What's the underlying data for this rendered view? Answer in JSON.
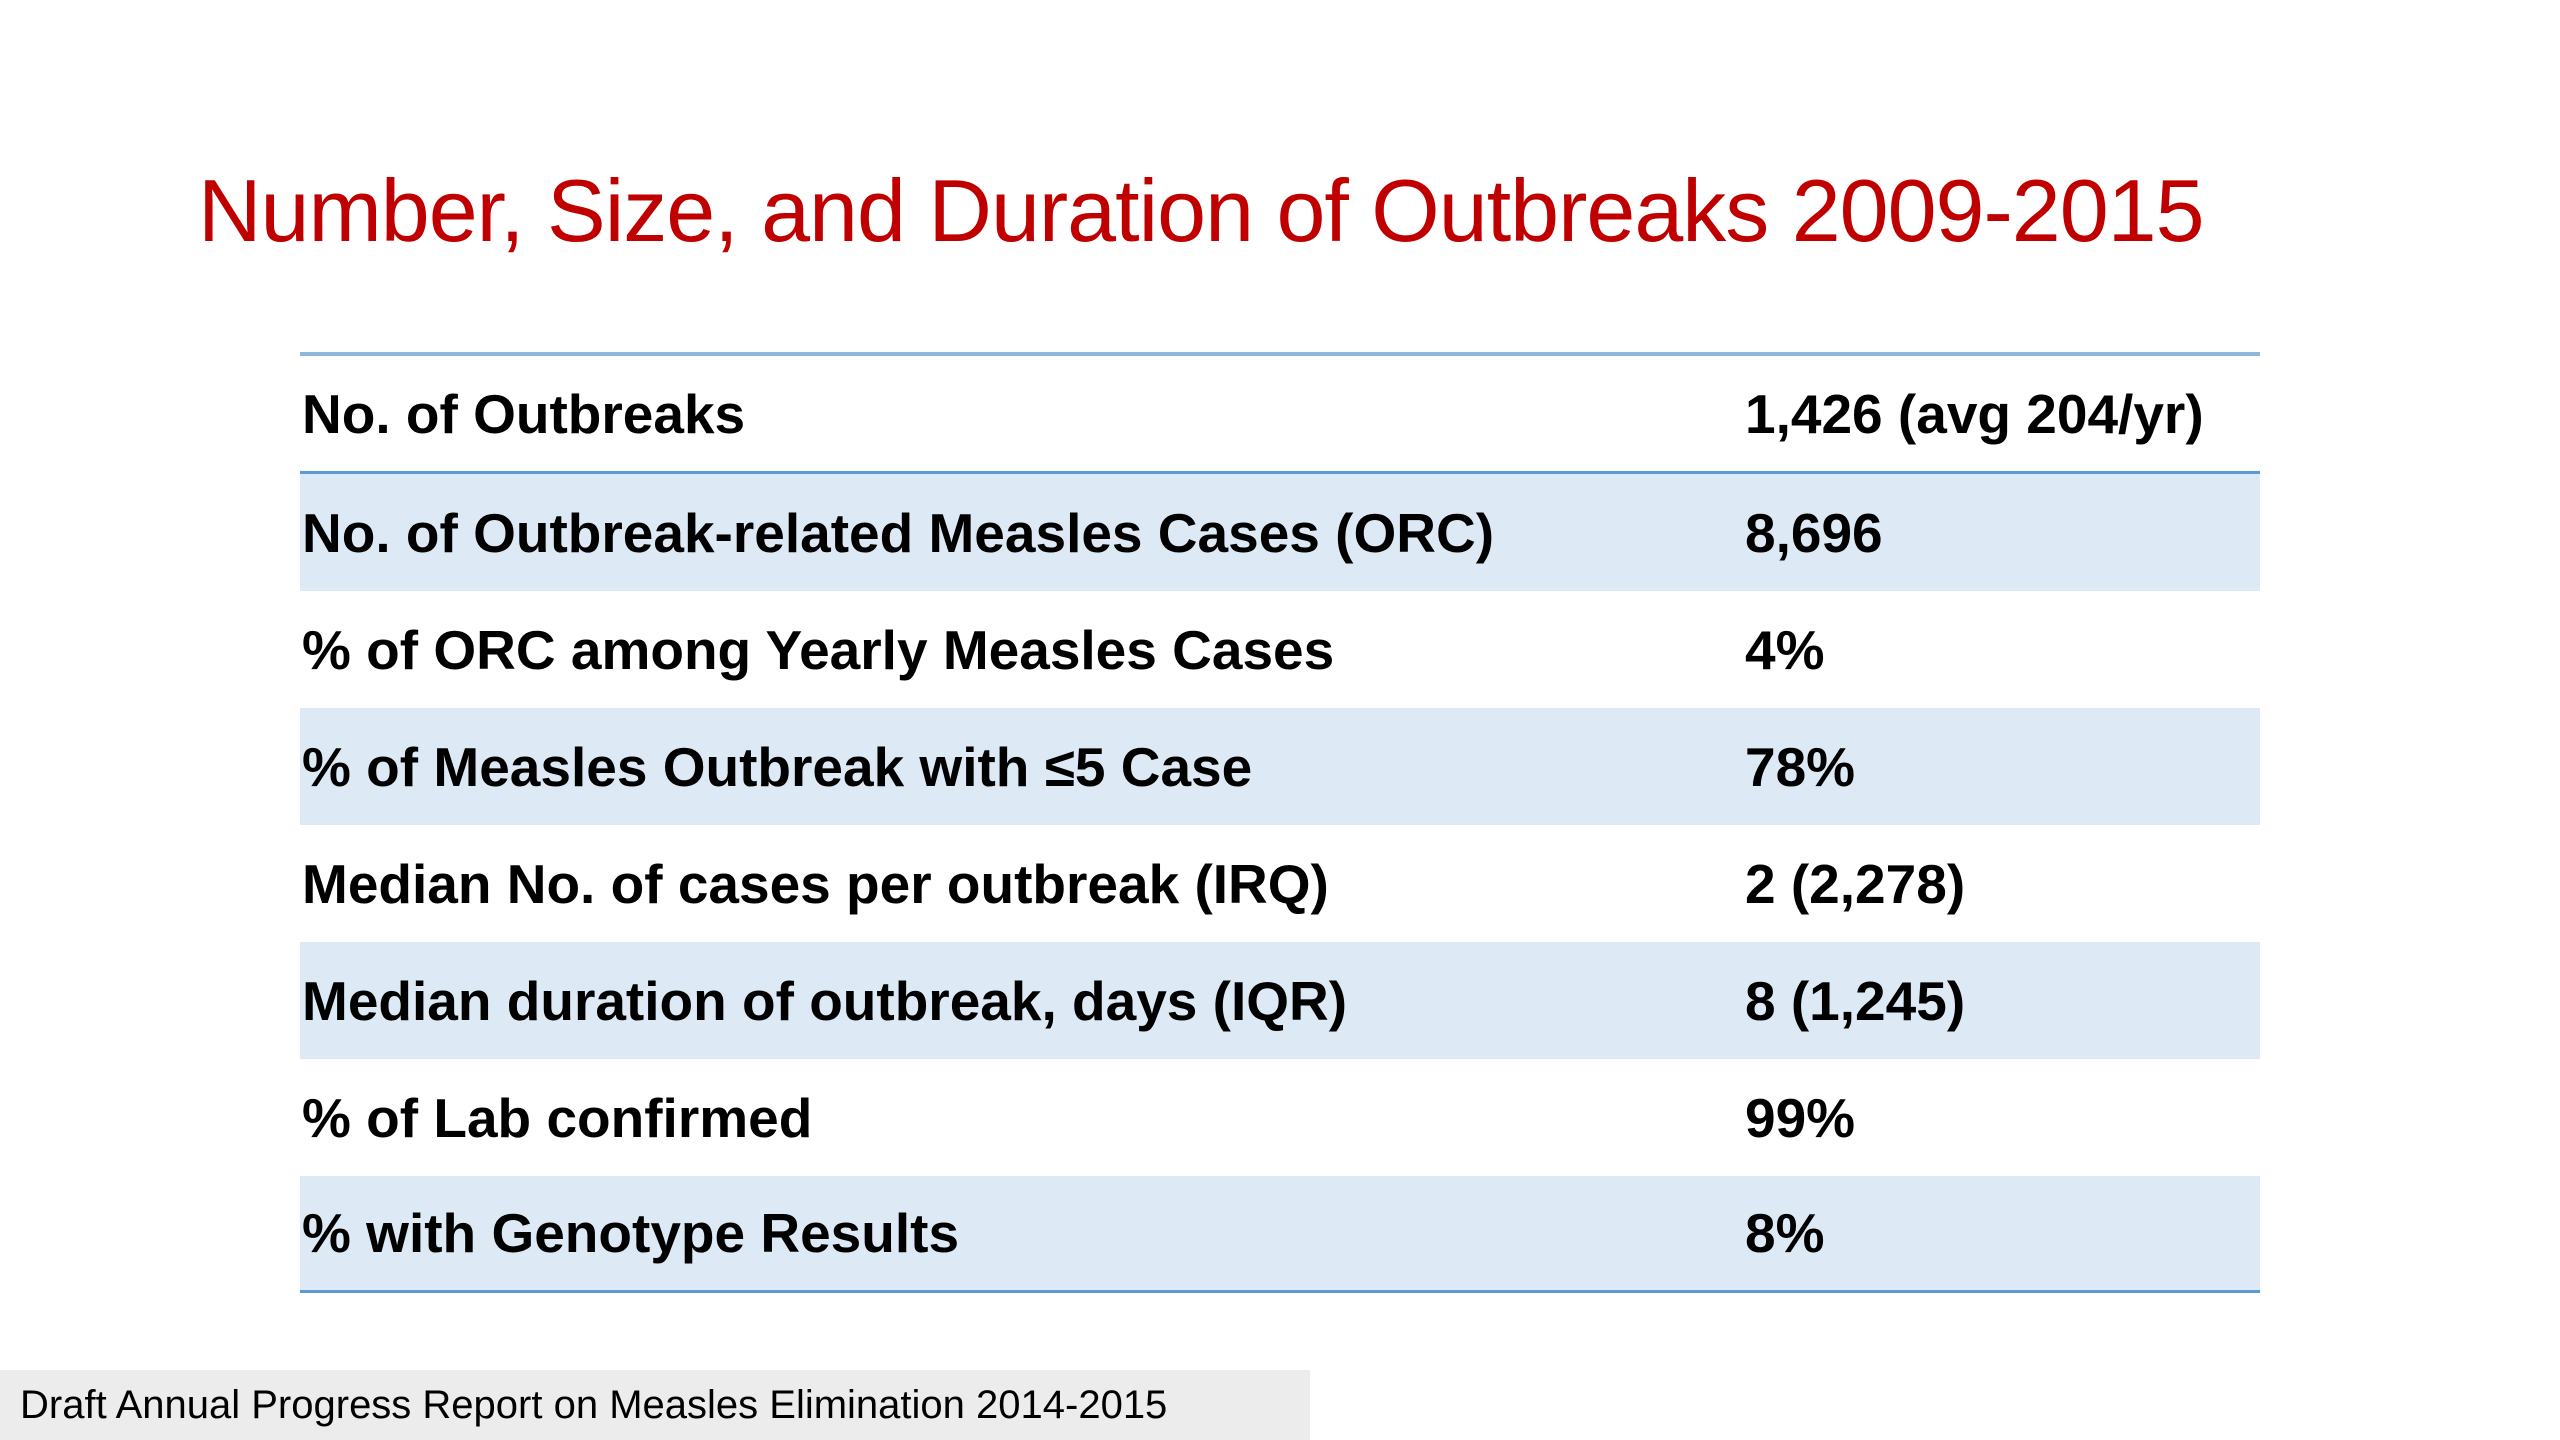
{
  "slide": {
    "title": "Number, Size, and Duration of Outbreaks 2009-2015",
    "footer": "Draft Annual Progress Report on Measles Elimination 2014-2015"
  },
  "table": {
    "rows": [
      {
        "label": "No. of Outbreaks",
        "value": "1,426 (avg 204/yr)"
      },
      {
        "label": "No. of Outbreak-related Measles Cases (ORC)",
        "value": "8,696"
      },
      {
        "label": "% of ORC among Yearly Measles Cases",
        "value": "4%"
      },
      {
        "label": "% of Measles Outbreak with ≤5 Case",
        "value": "78%"
      },
      {
        "label": "Median No. of cases per outbreak (IRQ)",
        "value": "2 (2,278)"
      },
      {
        "label": "Median duration of outbreak, days (IQR)",
        "value": "8 (1,245)"
      },
      {
        "label": "% of Lab confirmed",
        "value": "99%"
      },
      {
        "label": "% with Genotype Results",
        "value": "8%"
      }
    ]
  },
  "colors": {
    "title": "#c00000",
    "row_shade": "#dde9f5",
    "rule": "#5b9bd5",
    "footer_bg": "#ececec"
  }
}
